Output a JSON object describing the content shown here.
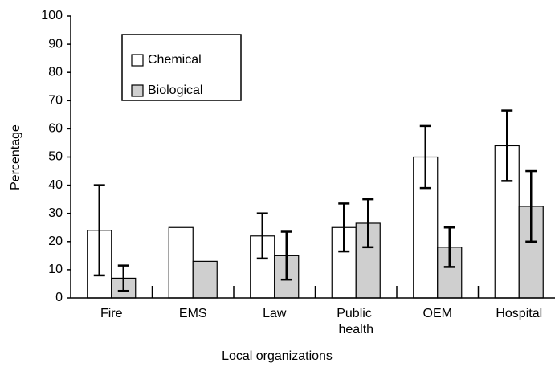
{
  "chart_data": {
    "type": "bar",
    "categories": [
      "Fire",
      "EMS",
      "Law",
      "Public health",
      "OEM",
      "Hospital"
    ],
    "series": [
      {
        "name": "Chemical",
        "color": "#ffffff",
        "values": [
          24,
          25,
          22,
          25,
          50,
          54
        ],
        "errors": [
          16,
          null,
          8,
          8.5,
          11,
          12.5
        ]
      },
      {
        "name": "Biological",
        "color": "#cfcfcf",
        "values": [
          7,
          13,
          15,
          26.5,
          18,
          32.5
        ],
        "errors": [
          4.5,
          null,
          8.5,
          8.5,
          7,
          12.5
        ]
      }
    ],
    "xlabel": "Local organizations",
    "ylabel": "Percentage",
    "ylim": [
      0,
      100
    ],
    "yticks": [
      0,
      10,
      20,
      30,
      40,
      50,
      60,
      70,
      80,
      90,
      100
    ],
    "legend": "upper left"
  }
}
